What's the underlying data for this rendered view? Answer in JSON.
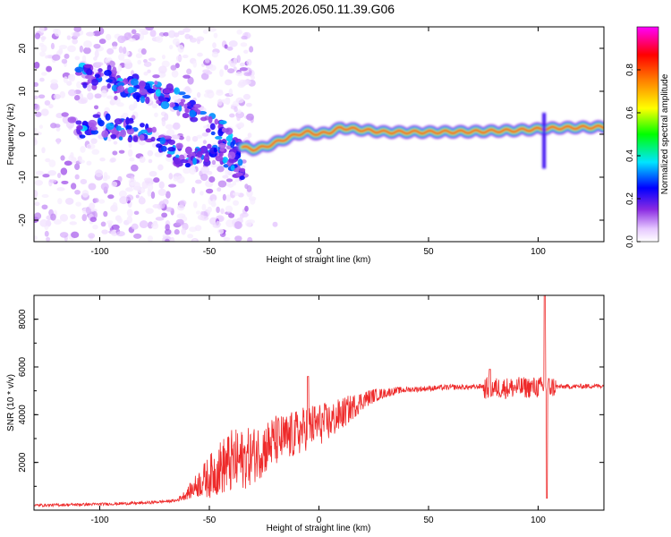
{
  "title": "KOM5.2026.050.11.39.G06",
  "chart_data": [
    {
      "type": "heatmap",
      "name": "spectrogram",
      "xlabel": "Height of straight line (km)",
      "ylabel": "Frequency (Hz)",
      "xlim": [
        -130,
        130
      ],
      "ylim": [
        -25,
        25
      ],
      "xticks": [
        -100,
        -50,
        0,
        50,
        100
      ],
      "yticks": [
        -20,
        -10,
        0,
        10,
        20
      ],
      "ridge": {
        "x": [
          -35,
          -30,
          -25,
          -20,
          -15,
          -10,
          -5,
          0,
          5,
          10,
          20,
          30,
          50,
          70,
          90,
          100,
          110,
          130
        ],
        "freq": [
          -3.0,
          -3.5,
          -3.0,
          -2.0,
          -1.0,
          0.0,
          0.5,
          0.0,
          0.5,
          1.5,
          1.0,
          0.5,
          0.5,
          0.6,
          0.9,
          1.2,
          1.5,
          1.7
        ]
      },
      "branches": [
        {
          "name": "upper-arc",
          "x": [
            -110,
            -95,
            -85,
            -75,
            -65,
            -55,
            -45,
            -40,
            -35
          ],
          "freq": [
            14,
            13,
            11,
            10,
            8,
            5,
            1,
            -2,
            -5
          ]
        },
        {
          "name": "lower-arc",
          "x": [
            -110,
            -100,
            -90,
            -80,
            -70,
            -60,
            -50,
            -45,
            -40,
            -35
          ],
          "freq": [
            1,
            2,
            1.5,
            0.5,
            -3,
            -6,
            -5,
            -4,
            -6,
            -9
          ]
        }
      ],
      "colorbar": {
        "label": "Normalized spectral amplitude",
        "ticks": [
          "0.0",
          "0.2",
          "0.4",
          "0.6",
          "0.8"
        ],
        "range": [
          0,
          1
        ],
        "colors": [
          "#ffffff",
          "#e6c8ff",
          "#8a2be2",
          "#0000ff",
          "#00e5ff",
          "#00ff00",
          "#ffff00",
          "#ff8000",
          "#ff0000",
          "#ff00ff"
        ]
      }
    },
    {
      "type": "line",
      "name": "snr",
      "xlabel": "Height of straight line (km)",
      "ylabel": "SNR (10 * v/v)",
      "xlim": [
        -130,
        130
      ],
      "ylim": [
        0,
        9000
      ],
      "xticks": [
        -100,
        -50,
        0,
        50,
        100
      ],
      "yticks": [
        2000,
        4000,
        6000,
        8000
      ],
      "color": "#ee2a2a",
      "envelope": {
        "x": [
          -130,
          -100,
          -80,
          -65,
          -60,
          -55,
          -50,
          -45,
          -40,
          -35,
          -30,
          -25,
          -20,
          -15,
          -10,
          -5,
          0,
          5,
          10,
          15,
          20,
          25,
          30,
          35,
          40,
          50,
          60,
          70,
          75
        ],
        "y": [
          200,
          250,
          300,
          400,
          700,
          1100,
          1400,
          1800,
          2000,
          2100,
          2300,
          2600,
          2900,
          3000,
          3200,
          3500,
          3600,
          3700,
          4000,
          4300,
          4600,
          4800,
          4900,
          5000,
          5050,
          5100,
          5150,
          5150,
          5200
        ]
      },
      "noise_amp": {
        "x": [
          -130,
          -65,
          -60,
          -50,
          -40,
          -30,
          -20,
          -10,
          0,
          10,
          20,
          30,
          40,
          70
        ],
        "a": [
          60,
          60,
          250,
          900,
          1400,
          1200,
          1100,
          1000,
          900,
          700,
          400,
          200,
          120,
          110
        ]
      },
      "features": [
        {
          "x": -5,
          "y": 5600
        },
        {
          "x": 78,
          "y": 5900
        },
        {
          "x": 103,
          "y": 9000
        },
        {
          "x": 104,
          "y": 500
        },
        {
          "x": 130,
          "y": 5200
        }
      ]
    }
  ]
}
